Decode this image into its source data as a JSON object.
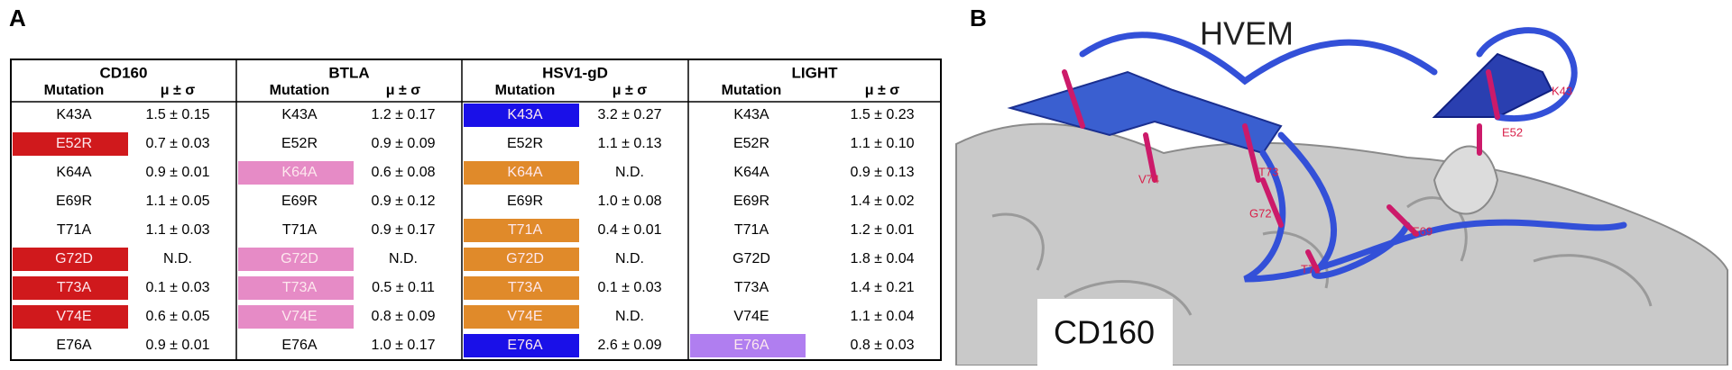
{
  "panel_a": {
    "label": "A",
    "table": {
      "groups": [
        {
          "name": "CD160",
          "columns": [
            "Mutation",
            "μ ± σ"
          ],
          "rows": [
            [
              "K43A",
              "1.5 ± 0.15"
            ],
            [
              "E52R",
              "0.7 ± 0.03"
            ],
            [
              "K64A",
              "0.9 ± 0.01"
            ],
            [
              "E69R",
              "1.1 ± 0.05"
            ],
            [
              "T71A",
              "1.1 ± 0.03"
            ],
            [
              "G72D",
              "N.D."
            ],
            [
              "T73A",
              "0.1 ± 0.03"
            ],
            [
              "V74E",
              "0.6 ± 0.05"
            ],
            [
              "E76A",
              "0.9 ± 0.01"
            ]
          ],
          "highlights": [
            null,
            "#d0191c",
            null,
            null,
            null,
            "#d0191c",
            "#d0191c",
            "#d0191c",
            null
          ]
        },
        {
          "name": "BTLA",
          "columns": [
            "Mutation",
            "μ ± σ"
          ],
          "rows": [
            [
              "K43A",
              "1.2 ± 0.17"
            ],
            [
              "E52R",
              "0.9 ± 0.09"
            ],
            [
              "K64A",
              "0.6 ± 0.08"
            ],
            [
              "E69R",
              "0.9 ± 0.12"
            ],
            [
              "T71A",
              "0.9 ± 0.17"
            ],
            [
              "G72D",
              "N.D."
            ],
            [
              "T73A",
              "0.5 ± 0.11"
            ],
            [
              "V74E",
              "0.8 ± 0.09"
            ],
            [
              "E76A",
              "1.0 ± 0.17"
            ]
          ],
          "highlights": [
            null,
            null,
            "#e68bc6",
            null,
            null,
            "#e68bc6",
            "#e68bc6",
            "#e68bc6",
            null
          ]
        },
        {
          "name": "HSV1-gD",
          "columns": [
            "Mutation",
            "μ ± σ"
          ],
          "rows": [
            [
              "K43A",
              "3.2 ± 0.27"
            ],
            [
              "E52R",
              "1.1 ± 0.13"
            ],
            [
              "K64A",
              "N.D."
            ],
            [
              "E69R",
              "1.0 ± 0.08"
            ],
            [
              "T71A",
              "0.4 ± 0.01"
            ],
            [
              "G72D",
              "N.D."
            ],
            [
              "T73A",
              "0.1 ± 0.03"
            ],
            [
              "V74E",
              "N.D."
            ],
            [
              "E76A",
              "2.6 ± 0.09"
            ]
          ],
          "highlights": [
            "#1a10e8",
            null,
            "#e08a2a",
            null,
            "#e08a2a",
            "#e08a2a",
            "#e08a2a",
            "#e08a2a",
            "#1a10e8"
          ]
        },
        {
          "name": "LIGHT",
          "columns": [
            "Mutation",
            "μ ± σ"
          ],
          "rows": [
            [
              "K43A",
              "1.5 ± 0.23"
            ],
            [
              "E52R",
              "1.1 ± 0.10"
            ],
            [
              "K64A",
              "0.9 ± 0.13"
            ],
            [
              "E69R",
              "1.4 ± 0.02"
            ],
            [
              "T71A",
              "1.2 ± 0.01"
            ],
            [
              "G72D",
              "1.8 ± 0.04"
            ],
            [
              "T73A",
              "1.4 ± 0.21"
            ],
            [
              "V74E",
              "1.1 ± 0.04"
            ],
            [
              "E76A",
              "0.8 ± 0.03"
            ]
          ],
          "highlights": [
            null,
            null,
            null,
            null,
            null,
            null,
            null,
            null,
            "#b07ef0"
          ]
        }
      ]
    }
  },
  "panel_b": {
    "label": "B",
    "title": "HVEM",
    "surface_label": "CD160",
    "residues": [
      "K43",
      "E52",
      "V74",
      "T73",
      "G72",
      "E69",
      "T71"
    ]
  }
}
